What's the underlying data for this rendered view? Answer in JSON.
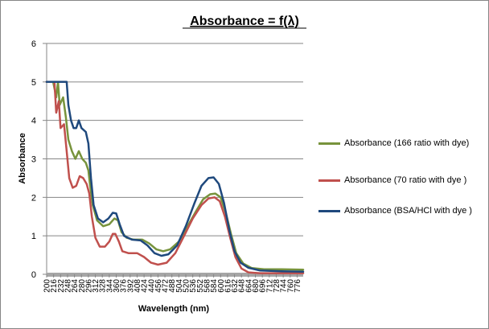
{
  "chart_data": {
    "type": "line",
    "title": "Absorbance = f(λ)",
    "xlabel": "Wavelength (nm)",
    "ylabel": "Absorbance",
    "xlim": [
      200,
      790
    ],
    "ylim": [
      0,
      6
    ],
    "yticks": [
      "0",
      "1",
      "2",
      "3",
      "4",
      "5",
      "6"
    ],
    "xticks": [
      "200",
      "216",
      "232",
      "248",
      "264",
      "280",
      "296",
      "312",
      "328",
      "344",
      "360",
      "376",
      "392",
      "408",
      "424",
      "440",
      "456",
      "472",
      "488",
      "504",
      "520",
      "536",
      "552",
      "568",
      "584",
      "600",
      "616",
      "632",
      "648",
      "664",
      "680",
      "696",
      "712",
      "728",
      "744",
      "760",
      "776"
    ],
    "grid": "horizontal",
    "legend_position": "right",
    "series": [
      {
        "name": "Absorbance (166 ratio with dye)",
        "color": "#77933c",
        "points": [
          [
            200,
            5
          ],
          [
            215,
            5
          ],
          [
            222,
            4.6
          ],
          [
            226,
            5
          ],
          [
            230,
            4.4
          ],
          [
            238,
            4.6
          ],
          [
            244,
            4.1
          ],
          [
            250,
            3.5
          ],
          [
            258,
            3.2
          ],
          [
            266,
            3.0
          ],
          [
            274,
            3.2
          ],
          [
            282,
            3.0
          ],
          [
            290,
            2.9
          ],
          [
            296,
            2.7
          ],
          [
            300,
            2.3
          ],
          [
            306,
            1.8
          ],
          [
            316,
            1.4
          ],
          [
            330,
            1.25
          ],
          [
            344,
            1.3
          ],
          [
            356,
            1.45
          ],
          [
            364,
            1.4
          ],
          [
            372,
            1.1
          ],
          [
            384,
            0.95
          ],
          [
            400,
            0.9
          ],
          [
            420,
            0.9
          ],
          [
            436,
            0.8
          ],
          [
            452,
            0.65
          ],
          [
            468,
            0.6
          ],
          [
            484,
            0.65
          ],
          [
            504,
            0.85
          ],
          [
            524,
            1.25
          ],
          [
            544,
            1.65
          ],
          [
            560,
            1.95
          ],
          [
            576,
            2.08
          ],
          [
            588,
            2.1
          ],
          [
            600,
            2.0
          ],
          [
            612,
            1.6
          ],
          [
            624,
            1.05
          ],
          [
            636,
            0.55
          ],
          [
            652,
            0.28
          ],
          [
            672,
            0.16
          ],
          [
            700,
            0.13
          ],
          [
            740,
            0.13
          ],
          [
            790,
            0.12
          ]
        ]
      },
      {
        "name": "Absorbance (70 ratio with  dye )",
        "color": "#c0504d",
        "points": [
          [
            200,
            5
          ],
          [
            218,
            5
          ],
          [
            222,
            4.2
          ],
          [
            228,
            4.5
          ],
          [
            232,
            3.8
          ],
          [
            240,
            3.9
          ],
          [
            246,
            3.2
          ],
          [
            252,
            2.5
          ],
          [
            260,
            2.25
          ],
          [
            268,
            2.3
          ],
          [
            276,
            2.55
          ],
          [
            284,
            2.5
          ],
          [
            292,
            2.35
          ],
          [
            298,
            2.1
          ],
          [
            304,
            1.5
          ],
          [
            312,
            0.95
          ],
          [
            322,
            0.72
          ],
          [
            334,
            0.72
          ],
          [
            344,
            0.85
          ],
          [
            352,
            1.05
          ],
          [
            358,
            1.05
          ],
          [
            366,
            0.85
          ],
          [
            374,
            0.6
          ],
          [
            388,
            0.55
          ],
          [
            408,
            0.55
          ],
          [
            424,
            0.45
          ],
          [
            440,
            0.3
          ],
          [
            456,
            0.25
          ],
          [
            476,
            0.3
          ],
          [
            496,
            0.55
          ],
          [
            516,
            1.0
          ],
          [
            536,
            1.45
          ],
          [
            556,
            1.8
          ],
          [
            572,
            1.97
          ],
          [
            586,
            2.0
          ],
          [
            598,
            1.9
          ],
          [
            610,
            1.5
          ],
          [
            622,
            0.95
          ],
          [
            634,
            0.45
          ],
          [
            648,
            0.15
          ],
          [
            664,
            0.05
          ],
          [
            690,
            0.03
          ],
          [
            740,
            0.03
          ],
          [
            790,
            0.03
          ]
        ]
      },
      {
        "name": "Absorbance (BSA/HCl with dye )",
        "color": "#1f497d",
        "points": [
          [
            200,
            5
          ],
          [
            246,
            5
          ],
          [
            250,
            4.4
          ],
          [
            256,
            4.0
          ],
          [
            262,
            3.8
          ],
          [
            268,
            3.8
          ],
          [
            274,
            4.0
          ],
          [
            280,
            3.8
          ],
          [
            290,
            3.7
          ],
          [
            296,
            3.4
          ],
          [
            302,
            2.5
          ],
          [
            308,
            1.8
          ],
          [
            318,
            1.45
          ],
          [
            330,
            1.35
          ],
          [
            342,
            1.45
          ],
          [
            352,
            1.6
          ],
          [
            360,
            1.58
          ],
          [
            368,
            1.3
          ],
          [
            378,
            1.0
          ],
          [
            396,
            0.9
          ],
          [
            416,
            0.88
          ],
          [
            432,
            0.75
          ],
          [
            448,
            0.55
          ],
          [
            464,
            0.48
          ],
          [
            480,
            0.52
          ],
          [
            500,
            0.75
          ],
          [
            520,
            1.25
          ],
          [
            540,
            1.85
          ],
          [
            556,
            2.3
          ],
          [
            572,
            2.5
          ],
          [
            584,
            2.52
          ],
          [
            596,
            2.35
          ],
          [
            608,
            1.85
          ],
          [
            620,
            1.15
          ],
          [
            632,
            0.6
          ],
          [
            646,
            0.3
          ],
          [
            664,
            0.17
          ],
          [
            690,
            0.1
          ],
          [
            740,
            0.08
          ],
          [
            790,
            0.07
          ]
        ]
      }
    ]
  }
}
